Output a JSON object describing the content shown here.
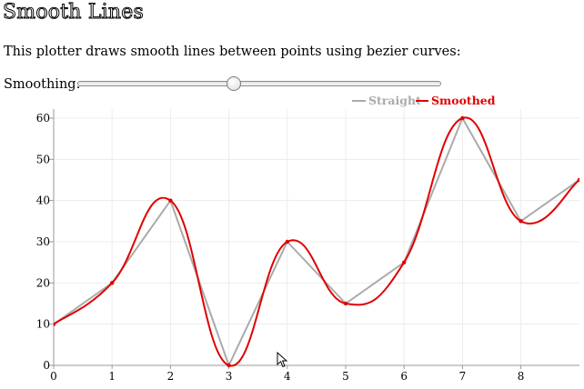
{
  "page": {
    "title": "Smooth Lines",
    "description": "This plotter draws smooth lines between points using bezier curves:"
  },
  "smoothing": {
    "label": "Smoothing:",
    "value": 0.43
  },
  "colors": {
    "straight": "#aaaaaa",
    "smoothed": "#e00000",
    "grid": "#ececec",
    "axis": "#999999"
  },
  "chart_data": {
    "type": "line",
    "title": "",
    "xlabel": "",
    "ylabel": "",
    "x": [
      0,
      1,
      2,
      3,
      4,
      5,
      6,
      7,
      8,
      9
    ],
    "xlim": [
      0,
      9
    ],
    "ylim": [
      0,
      65
    ],
    "xticks": [
      "0",
      "1",
      "2",
      "3",
      "4",
      "5",
      "6",
      "7",
      "8"
    ],
    "yticks": [
      "0",
      "10",
      "20",
      "30",
      "40",
      "50",
      "60"
    ],
    "grid": true,
    "legend_position": "top-right",
    "series": [
      {
        "name": "Straight",
        "values": [
          10,
          20,
          40,
          0,
          30,
          15,
          25,
          60,
          35,
          45
        ]
      },
      {
        "name": "Smoothed",
        "values": [
          10,
          20,
          40,
          0,
          30,
          15,
          25,
          60,
          35,
          45
        ]
      }
    ]
  }
}
